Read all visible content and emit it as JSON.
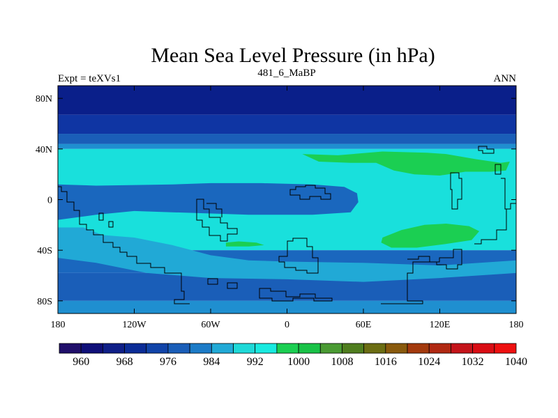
{
  "chart_data": {
    "type": "heatmap",
    "title": "Mean Sea Level Pressure (in hPa)",
    "subtitle_left": "Expt = teXVs1",
    "subtitle_center": "481_6_MaBP",
    "subtitle_right": "ANN",
    "x_ticks": [
      {
        "value": -180,
        "label": "180"
      },
      {
        "value": -120,
        "label": "120W"
      },
      {
        "value": -60,
        "label": "60W"
      },
      {
        "value": 0,
        "label": "0"
      },
      {
        "value": 60,
        "label": "60E"
      },
      {
        "value": 120,
        "label": "120E"
      },
      {
        "value": 180,
        "label": "180"
      }
    ],
    "y_ticks": [
      {
        "value": 80,
        "label": "80N"
      },
      {
        "value": 40,
        "label": "40N"
      },
      {
        "value": 0,
        "label": "0"
      },
      {
        "value": -40,
        "label": "40S"
      },
      {
        "value": -80,
        "label": "80S"
      }
    ],
    "xlim": [
      -180,
      180
    ],
    "ylim": [
      -90,
      90
    ],
    "colorbar": {
      "colors": [
        "#200f6a",
        "#0f0f78",
        "#0f1f87",
        "#0b2c96",
        "#1144a8",
        "#1a5eb8",
        "#1c7bc7",
        "#21a9d6",
        "#1fd9d8",
        "#19eae0",
        "#1bcf52",
        "#19c247",
        "#4a9a33",
        "#4f7d1f",
        "#6b6d13",
        "#895a0d",
        "#a33a0d",
        "#b02812",
        "#c4141a",
        "#d90d14",
        "#ee1010"
      ],
      "labels": [
        "960",
        "968",
        "976",
        "984",
        "992",
        "1000",
        "1008",
        "1016",
        "1024",
        "1032",
        "1040"
      ]
    },
    "zonal_bands": [
      {
        "lat_top": 90,
        "lat_bottom": 67,
        "color": "#0a1f8a"
      },
      {
        "lat_top": 67,
        "lat_bottom": 52,
        "color": "#0f35a3"
      },
      {
        "lat_top": 52,
        "lat_bottom": 44,
        "color": "#1a5eb8"
      },
      {
        "lat_top": 44,
        "lat_bottom": 40,
        "color": "#1f8fd0"
      },
      {
        "lat_top": 40,
        "lat_bottom": -40,
        "color": "#19e0dc"
      },
      {
        "lat_top": -40,
        "lat_bottom": -58,
        "color": "#1a67be"
      },
      {
        "lat_top": -58,
        "lat_bottom": -80,
        "color": "#1a5eb8"
      },
      {
        "lat_top": -80,
        "lat_bottom": -90,
        "color": "#1f8fd0"
      }
    ],
    "regions": [
      {
        "color": "#1a67be",
        "points": [
          [
            -180,
            12
          ],
          [
            -150,
            11
          ],
          [
            -90,
            12
          ],
          [
            -60,
            13
          ],
          [
            -20,
            13
          ],
          [
            20,
            12
          ],
          [
            45,
            10
          ],
          [
            55,
            5
          ],
          [
            56,
            -2
          ],
          [
            50,
            -10
          ],
          [
            20,
            -12
          ],
          [
            -30,
            -12
          ],
          [
            -90,
            -10
          ],
          [
            -120,
            -9
          ],
          [
            -150,
            -12
          ],
          [
            -180,
            -16
          ]
        ]
      },
      {
        "color": "#21a9d6",
        "points": [
          [
            -180,
            -22
          ],
          [
            -160,
            -22
          ],
          [
            -145,
            -28
          ],
          [
            -120,
            -30
          ],
          [
            -90,
            -36
          ],
          [
            -60,
            -44
          ],
          [
            -30,
            -48
          ],
          [
            0,
            -49
          ],
          [
            60,
            -50
          ],
          [
            120,
            -52
          ],
          [
            180,
            -48
          ],
          [
            180,
            -58
          ],
          [
            120,
            -62
          ],
          [
            60,
            -65
          ],
          [
            0,
            -63
          ],
          [
            -60,
            -62
          ],
          [
            -110,
            -58
          ],
          [
            -150,
            -50
          ],
          [
            -180,
            -46
          ]
        ]
      },
      {
        "color": "#1bcf52",
        "points": [
          [
            12,
            36
          ],
          [
            40,
            35
          ],
          [
            75,
            38
          ],
          [
            110,
            37
          ],
          [
            125,
            36
          ],
          [
            148,
            32
          ],
          [
            168,
            29
          ],
          [
            175,
            30
          ],
          [
            172,
            23
          ],
          [
            160,
            22
          ],
          [
            140,
            22
          ],
          [
            120,
            19
          ],
          [
            100,
            20
          ],
          [
            84,
            23
          ],
          [
            70,
            29
          ],
          [
            50,
            29
          ],
          [
            25,
            30
          ]
        ]
      },
      {
        "color": "#1bcf52",
        "points": [
          [
            75,
            -30
          ],
          [
            90,
            -24
          ],
          [
            108,
            -20
          ],
          [
            125,
            -19
          ],
          [
            143,
            -21
          ],
          [
            151,
            -25
          ],
          [
            145,
            -32
          ],
          [
            125,
            -35
          ],
          [
            102,
            -38
          ],
          [
            82,
            -38
          ],
          [
            74,
            -34
          ]
        ]
      },
      {
        "color": "#1bcf52",
        "points": [
          [
            -48,
            -34
          ],
          [
            -38,
            -33
          ],
          [
            -24,
            -34
          ],
          [
            -18,
            -36
          ],
          [
            -30,
            -37
          ],
          [
            -48,
            -37
          ]
        ]
      }
    ]
  }
}
